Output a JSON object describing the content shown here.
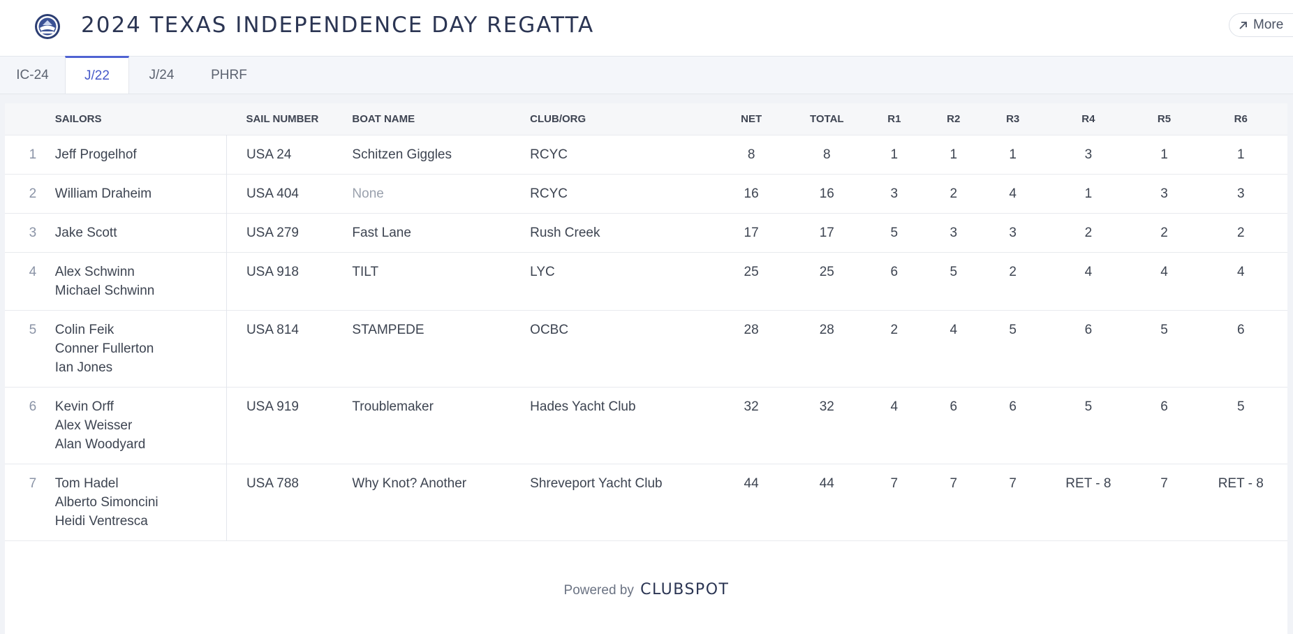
{
  "header": {
    "title": "2024 TEXAS INDEPENDENCE DAY REGATTA",
    "more_label": "More"
  },
  "tabs": [
    {
      "label": "IC-24",
      "active": false
    },
    {
      "label": "J/22",
      "active": true
    },
    {
      "label": "J/24",
      "active": false
    },
    {
      "label": "PHRF",
      "active": false
    }
  ],
  "table": {
    "headers": {
      "sailors": "SAILORS",
      "sail_number": "SAIL NUMBER",
      "boat_name": "BOAT NAME",
      "club": "CLUB/ORG",
      "net": "NET",
      "total": "TOTAL",
      "r1": "R1",
      "r2": "R2",
      "r3": "R3",
      "r4": "R4",
      "r5": "R5",
      "r6": "R6"
    },
    "rows": [
      {
        "rank": "1",
        "sailors": [
          "Jeff Progelhof"
        ],
        "sail_number": "USA 24",
        "boat_name": "Schitzen Giggles",
        "boat_muted": false,
        "club": "RCYC",
        "net": "8",
        "total": "8",
        "races": [
          "1",
          "1",
          "1",
          "3",
          "1",
          "1"
        ]
      },
      {
        "rank": "2",
        "sailors": [
          "William Draheim"
        ],
        "sail_number": "USA 404",
        "boat_name": "None",
        "boat_muted": true,
        "club": "RCYC",
        "net": "16",
        "total": "16",
        "races": [
          "3",
          "2",
          "4",
          "1",
          "3",
          "3"
        ]
      },
      {
        "rank": "3",
        "sailors": [
          "Jake Scott"
        ],
        "sail_number": "USA 279",
        "boat_name": "Fast Lane",
        "boat_muted": false,
        "club": "Rush Creek",
        "net": "17",
        "total": "17",
        "races": [
          "5",
          "3",
          "3",
          "2",
          "2",
          "2"
        ]
      },
      {
        "rank": "4",
        "sailors": [
          "Alex Schwinn",
          "Michael Schwinn"
        ],
        "sail_number": "USA 918",
        "boat_name": "TILT",
        "boat_muted": false,
        "club": "LYC",
        "net": "25",
        "total": "25",
        "races": [
          "6",
          "5",
          "2",
          "4",
          "4",
          "4"
        ]
      },
      {
        "rank": "5",
        "sailors": [
          "Colin Feik",
          "Conner Fullerton",
          "Ian Jones"
        ],
        "sail_number": "USA 814",
        "boat_name": "STAMPEDE",
        "boat_muted": false,
        "club": "OCBC",
        "net": "28",
        "total": "28",
        "races": [
          "2",
          "4",
          "5",
          "6",
          "5",
          "6"
        ]
      },
      {
        "rank": "6",
        "sailors": [
          "Kevin Orff",
          "Alex Weisser",
          "Alan Woodyard"
        ],
        "sail_number": "USA 919",
        "boat_name": "Troublemaker",
        "boat_muted": false,
        "club": "Hades Yacht Club",
        "net": "32",
        "total": "32",
        "races": [
          "4",
          "6",
          "6",
          "5",
          "6",
          "5"
        ]
      },
      {
        "rank": "7",
        "sailors": [
          "Tom Hadel",
          "Alberto Simoncini",
          "Heidi Ventresca"
        ],
        "sail_number": "USA 788",
        "boat_name": "Why Knot? Another",
        "boat_muted": false,
        "club": "Shreveport Yacht Club",
        "net": "44",
        "total": "44",
        "races": [
          "7",
          "7",
          "7",
          "RET - 8",
          "7",
          "RET - 8"
        ]
      }
    ]
  },
  "footer": {
    "powered_by": "Powered by",
    "brand": "CLUBSPOT"
  },
  "icons": {
    "logo": "club-burgee-logo",
    "more": "arrow-up-right-icon"
  },
  "colors": {
    "accent": "#4f63d2",
    "title": "#2b3553"
  }
}
